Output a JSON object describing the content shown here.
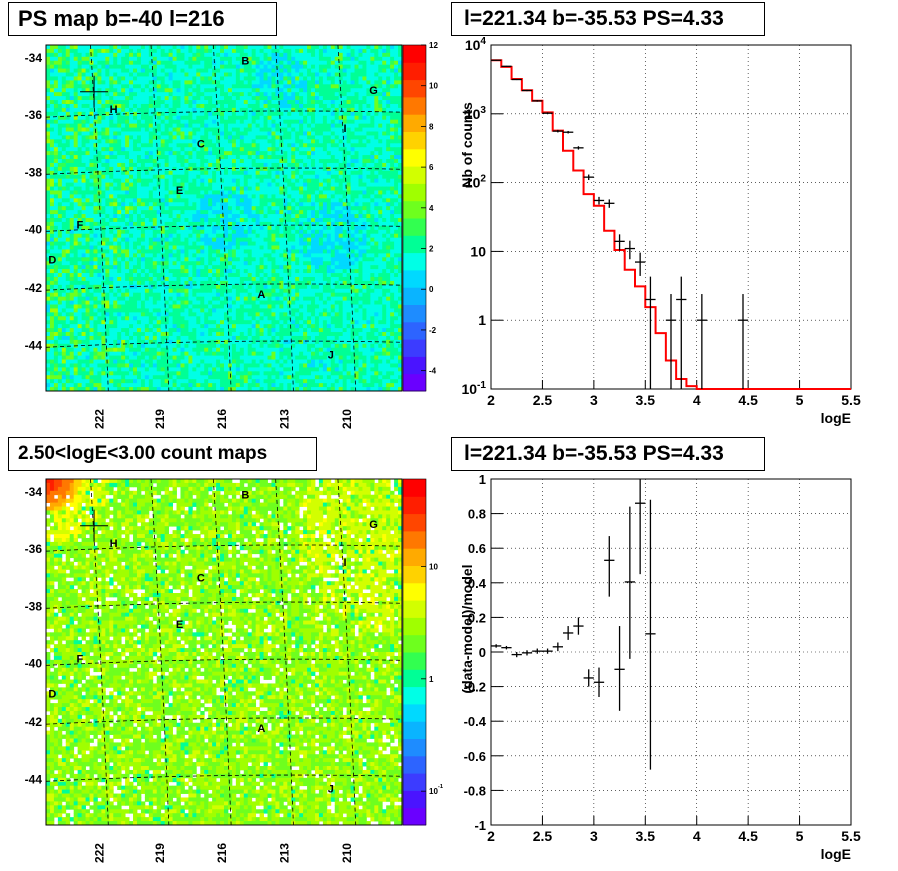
{
  "colors": {
    "background": "#ffffff",
    "hist_model": "#ff0000",
    "data_points": "#000000",
    "grid": "#000000"
  },
  "panels": {
    "tl": {
      "title": "PS map b=-40 l=216"
    },
    "tr": {
      "title": "l=221.34 b=-35.53 PS=4.33"
    },
    "bl": {
      "title": "2.50<logE<3.00 count maps"
    },
    "br": {
      "title": "l=221.34 b=-35.53 PS=4.33"
    }
  },
  "chart_data": [
    {
      "type": "heatmap",
      "title": "PS map b=-40 l=216",
      "xlabel": "",
      "ylabel": "",
      "x_ticks": [
        "222",
        "219",
        "216",
        "213",
        "210"
      ],
      "y_ticks": [
        "-34",
        "-36",
        "-38",
        "-40",
        "-42",
        "-44"
      ],
      "colorbar": {
        "scale": "linear",
        "min": -5,
        "max": 12,
        "ticks": [
          "12",
          "10",
          "8",
          "6",
          "4",
          "2",
          "0",
          "-2",
          "-4"
        ]
      },
      "source_labels": [
        "B",
        "G",
        "H",
        "I",
        "C",
        "E",
        "F",
        "D",
        "A",
        "J"
      ],
      "grid": true,
      "marker": "cross at l=221.34 b=-35.53"
    },
    {
      "type": "line",
      "title": "l=221.34 b=-35.53 PS=4.33",
      "xlabel": "logE",
      "ylabel": "Nb of counts",
      "xlim": [
        2,
        5.5
      ],
      "ylim": [
        0.1,
        10000
      ],
      "yscale": "log",
      "x_ticks": [
        "2",
        "2.5",
        "3",
        "3.5",
        "4",
        "4.5",
        "5",
        "5.5"
      ],
      "y_ticks": [
        "10^-1",
        "1",
        "10",
        "10^2",
        "10^3",
        "10^4"
      ],
      "grid": true,
      "series": [
        {
          "kind": "step",
          "color": "#ff0000",
          "bin_edges": [
            2.0,
            2.1,
            2.2,
            2.3,
            2.4,
            2.5,
            2.6,
            2.7,
            2.8,
            2.9,
            3.0,
            3.1,
            3.2,
            3.3,
            3.4,
            3.5,
            3.6,
            3.7,
            3.8,
            3.9,
            4.0,
            4.1,
            4.2,
            4.3,
            4.4,
            4.5,
            4.6,
            4.7,
            4.8,
            4.9,
            5.0,
            5.1,
            5.2,
            5.3,
            5.4,
            5.5
          ],
          "values": [
            6000,
            4800,
            3200,
            2200,
            1550,
            1050,
            570,
            290,
            150,
            68,
            46,
            20,
            10.5,
            5.4,
            3.1,
            1.55,
            0.65,
            0.26,
            0.14,
            0.11,
            0.1,
            0.1,
            0.1,
            0.1,
            0.1,
            0.1,
            0.1,
            0.1,
            0.1,
            0.1,
            0.1,
            0.1,
            0.1,
            0.1,
            0.1
          ]
        },
        {
          "kind": "errorbar",
          "color": "#000000",
          "x": [
            2.05,
            2.15,
            2.25,
            2.35,
            2.45,
            2.55,
            2.65,
            2.75,
            2.85,
            2.95,
            3.05,
            3.15,
            3.25,
            3.35,
            3.45,
            3.55,
            3.75,
            3.85,
            4.05,
            4.45
          ],
          "y": [
            6000,
            4900,
            3150,
            2180,
            1540,
            1020,
            560,
            540,
            320,
            120,
            55,
            50,
            14,
            11,
            7,
            2,
            1,
            2,
            1,
            1
          ],
          "ylow": [
            5920,
            4830,
            3095,
            2134,
            1501,
            988,
            536,
            517,
            302,
            109,
            48,
            43,
            10.3,
            7.7,
            4.4,
            0.1,
            0.1,
            0.1,
            0.1,
            0.1
          ],
          "yhigh": [
            6080,
            4970,
            3205,
            2226,
            1579,
            1052,
            584,
            563,
            338,
            131,
            62,
            57,
            17.7,
            14.3,
            9.6,
            4.3,
            2.4,
            4.3,
            2.4,
            2.4
          ]
        }
      ]
    },
    {
      "type": "heatmap",
      "title": "2.50<logE<3.00 count maps",
      "xlabel": "",
      "ylabel": "",
      "x_ticks": [
        "222",
        "219",
        "216",
        "213",
        "210"
      ],
      "y_ticks": [
        "-34",
        "-36",
        "-38",
        "-40",
        "-42",
        "-44"
      ],
      "colorbar": {
        "scale": "log",
        "min": 0.05,
        "max": 60,
        "ticks": [
          "10",
          "1",
          "10^-1"
        ]
      },
      "source_labels": [
        "B",
        "G",
        "H",
        "I",
        "C",
        "E",
        "F",
        "D",
        "A",
        "J"
      ],
      "grid": true,
      "marker": "cross at l=221.34 b=-35.53"
    },
    {
      "type": "scatter",
      "title": "l=221.34 b=-35.53 PS=4.33",
      "xlabel": "logE",
      "ylabel": "(data-model)/model",
      "xlim": [
        2,
        5.5
      ],
      "ylim": [
        -1,
        1
      ],
      "x_ticks": [
        "2",
        "2.5",
        "3",
        "3.5",
        "4",
        "4.5",
        "5",
        "5.5"
      ],
      "y_ticks": [
        "1",
        "0.8",
        "0.6",
        "0.4",
        "0.2",
        "0",
        "-0.2",
        "-0.4",
        "-0.6",
        "-0.8",
        "-1"
      ],
      "grid": true,
      "series": [
        {
          "kind": "errorbar",
          "color": "#000000",
          "x": [
            2.05,
            2.15,
            2.25,
            2.35,
            2.45,
            2.55,
            2.65,
            2.75,
            2.85,
            2.95,
            3.05,
            3.25,
            3.15,
            3.35,
            3.45,
            3.55
          ],
          "y": [
            0.035,
            0.025,
            -0.015,
            -0.005,
            0.005,
            0.005,
            0.03,
            0.11,
            0.15,
            -0.15,
            -0.175,
            -0.1,
            0.53,
            0.405,
            0.86,
            0.105
          ],
          "ylow": [
            0.025,
            0.015,
            -0.03,
            -0.02,
            -0.01,
            -0.01,
            0.005,
            0.07,
            0.1,
            -0.2,
            -0.26,
            -0.34,
            0.32,
            -0.04,
            0.45,
            -0.68
          ],
          "yhigh": [
            0.045,
            0.035,
            0,
            0.01,
            0.02,
            0.02,
            0.055,
            0.15,
            0.2,
            -0.1,
            -0.09,
            0.15,
            0.67,
            0.84,
            1.0,
            0.88
          ]
        }
      ]
    }
  ]
}
